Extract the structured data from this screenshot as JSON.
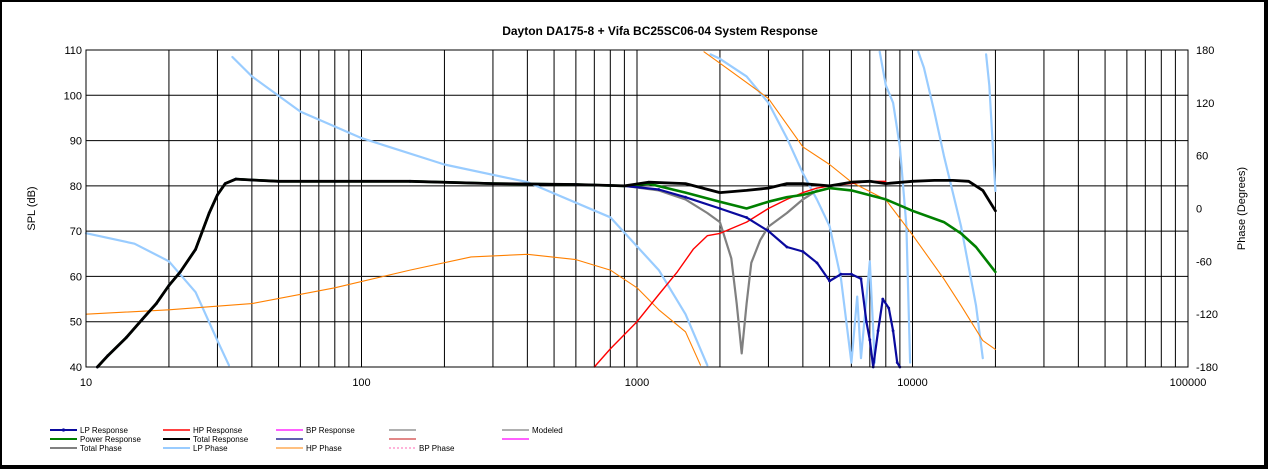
{
  "chart_data": {
    "type": "line",
    "title": "Dayton DA175-8  + Vifa BC25SC06-04      System Response",
    "xscale": "log",
    "xlim": [
      10,
      100000
    ],
    "ylim": [
      40,
      110
    ],
    "y2lim": [
      -180,
      180
    ],
    "ylabel": "SPL (dB)",
    "y2label": "Phase (Degrees)",
    "grid": true,
    "legend_position": "bottom",
    "x_ticks": [
      "10",
      "100",
      "1000",
      "10000",
      "100000"
    ],
    "y_ticks": [
      "40",
      "50",
      "60",
      "70",
      "80",
      "90",
      "100",
      "110"
    ],
    "y2_ticks": [
      "-180",
      "-120",
      "-60",
      "0",
      "60",
      "120",
      "180"
    ],
    "series": [
      {
        "name": "LP Response",
        "color": "#0a0a9e",
        "width": 2.2,
        "axis": "left",
        "marker": true,
        "points": [
          [
            11,
            40
          ],
          [
            12,
            42.5
          ],
          [
            14,
            46.5
          ],
          [
            16,
            50.5
          ],
          [
            18,
            54
          ],
          [
            20,
            58
          ],
          [
            22,
            61
          ],
          [
            25,
            66
          ],
          [
            28,
            74
          ],
          [
            30,
            78
          ],
          [
            32,
            80.5
          ],
          [
            35,
            81.5
          ],
          [
            40,
            81.3
          ],
          [
            50,
            81
          ],
          [
            80,
            81
          ],
          [
            150,
            81
          ],
          [
            300,
            80.5
          ],
          [
            600,
            80.3
          ],
          [
            900,
            80
          ],
          [
            1200,
            79.2
          ],
          [
            1500,
            77.5
          ],
          [
            2000,
            75
          ],
          [
            2500,
            73
          ],
          [
            3000,
            70
          ],
          [
            3500,
            66.5
          ],
          [
            4000,
            65.5
          ],
          [
            4500,
            63
          ],
          [
            5000,
            59
          ],
          [
            5500,
            60.5
          ],
          [
            6000,
            60.5
          ],
          [
            6500,
            59.5
          ],
          [
            6800,
            50
          ],
          [
            7000,
            46
          ],
          [
            7200,
            40
          ],
          [
            7500,
            48
          ],
          [
            7800,
            55
          ],
          [
            8200,
            53
          ],
          [
            8500,
            48
          ],
          [
            8800,
            41
          ],
          [
            9000,
            40
          ]
        ]
      },
      {
        "name": "HP Response",
        "color": "#ff0000",
        "width": 1.4,
        "axis": "left",
        "points": [
          [
            700,
            40
          ],
          [
            800,
            44
          ],
          [
            1000,
            50
          ],
          [
            1200,
            56
          ],
          [
            1400,
            61
          ],
          [
            1600,
            66
          ],
          [
            1800,
            69
          ],
          [
            2000,
            69.5
          ],
          [
            2500,
            72
          ],
          [
            3000,
            75
          ],
          [
            3500,
            77
          ],
          [
            4000,
            78.5
          ],
          [
            4500,
            79.5
          ],
          [
            5000,
            80
          ],
          [
            6000,
            80.5
          ],
          [
            7000,
            81
          ],
          [
            8000,
            81
          ]
        ]
      },
      {
        "name": "BP Response",
        "color": "#ff00ff",
        "width": 1.2,
        "axis": "left",
        "points": []
      },
      {
        "name": "",
        "color": "#808080",
        "width": 1.2,
        "axis": "left",
        "points": []
      },
      {
        "name": "Modeled",
        "color": "#808080",
        "width": 1.2,
        "axis": "left",
        "points": []
      },
      {
        "name": "Power Response",
        "color": "#008000",
        "width": 2.6,
        "axis": "left",
        "points": [
          [
            11,
            40
          ],
          [
            12,
            42.5
          ],
          [
            14,
            46.5
          ],
          [
            16,
            50.5
          ],
          [
            18,
            54
          ],
          [
            20,
            58
          ],
          [
            22,
            61
          ],
          [
            25,
            66
          ],
          [
            28,
            74
          ],
          [
            30,
            78
          ],
          [
            32,
            80.5
          ],
          [
            35,
            81.5
          ],
          [
            40,
            81.3
          ],
          [
            50,
            81
          ],
          [
            80,
            81
          ],
          [
            150,
            81
          ],
          [
            300,
            80.5
          ],
          [
            600,
            80.3
          ],
          [
            900,
            80
          ],
          [
            1100,
            80.5
          ],
          [
            1500,
            78.5
          ],
          [
            2000,
            76.5
          ],
          [
            2500,
            75
          ],
          [
            3000,
            76.5
          ],
          [
            3500,
            77.5
          ],
          [
            4000,
            78
          ],
          [
            5000,
            79.5
          ],
          [
            6000,
            79
          ],
          [
            8000,
            77
          ],
          [
            10000,
            74.5
          ],
          [
            13000,
            72
          ],
          [
            15000,
            69.5
          ],
          [
            17000,
            66.5
          ],
          [
            20000,
            61
          ]
        ]
      },
      {
        "name": "Total Response",
        "color": "#000000",
        "width": 2.8,
        "axis": "left",
        "points": [
          [
            11,
            40
          ],
          [
            12,
            42.5
          ],
          [
            14,
            46.5
          ],
          [
            16,
            50.5
          ],
          [
            18,
            54
          ],
          [
            20,
            58
          ],
          [
            22,
            61
          ],
          [
            25,
            66
          ],
          [
            28,
            74
          ],
          [
            30,
            78
          ],
          [
            32,
            80.5
          ],
          [
            35,
            81.5
          ],
          [
            40,
            81.3
          ],
          [
            50,
            81
          ],
          [
            80,
            81
          ],
          [
            150,
            81
          ],
          [
            300,
            80.5
          ],
          [
            600,
            80.3
          ],
          [
            900,
            80
          ],
          [
            1100,
            80.8
          ],
          [
            1500,
            80.5
          ],
          [
            2000,
            78.5
          ],
          [
            2500,
            79
          ],
          [
            3000,
            79.5
          ],
          [
            3500,
            80.5
          ],
          [
            4000,
            80.5
          ],
          [
            5000,
            80
          ],
          [
            6000,
            80.8
          ],
          [
            7000,
            81
          ],
          [
            8000,
            80.5
          ],
          [
            10000,
            81
          ],
          [
            12000,
            81.2
          ],
          [
            14000,
            81.2
          ],
          [
            16000,
            81
          ],
          [
            18000,
            79
          ],
          [
            20000,
            74.5
          ]
        ]
      },
      {
        "name": "",
        "color": "#000080",
        "width": 1.2,
        "axis": "left",
        "points": []
      },
      {
        "name": "",
        "color": "#d04040",
        "width": 1.2,
        "axis": "left",
        "points": []
      },
      {
        "name": "",
        "color": "#ff00ff",
        "width": 1.2,
        "axis": "left",
        "points": []
      },
      {
        "name": "Total Phase",
        "color": "#808080",
        "width": 2.2,
        "axis": "left",
        "points": [
          [
            900,
            80
          ],
          [
            1200,
            79
          ],
          [
            1500,
            77
          ],
          [
            1800,
            74
          ],
          [
            2000,
            72
          ],
          [
            2200,
            64
          ],
          [
            2300,
            54
          ],
          [
            2400,
            43
          ],
          [
            2500,
            54
          ],
          [
            2600,
            63
          ],
          [
            2800,
            68
          ],
          [
            3000,
            71
          ],
          [
            3500,
            74
          ],
          [
            4000,
            77
          ],
          [
            4500,
            79
          ]
        ]
      },
      {
        "name": "LP Phase",
        "color": "#99ccff",
        "width": 2.2,
        "axis": "right",
        "points": [
          [
            10,
            -28
          ],
          [
            15,
            -40
          ],
          [
            20,
            -60
          ],
          [
            25,
            -95
          ],
          [
            30,
            -150
          ],
          [
            33,
            -178
          ],
          [
            null,
            null
          ],
          [
            34,
            172
          ],
          [
            40,
            150
          ],
          [
            60,
            110
          ],
          [
            100,
            80
          ],
          [
            200,
            50
          ],
          [
            400,
            30
          ],
          [
            800,
            -10
          ],
          [
            1200,
            -70
          ],
          [
            1500,
            -120
          ],
          [
            1800,
            -178
          ],
          [
            null,
            null
          ],
          [
            1850,
            175
          ],
          [
            2000,
            170
          ],
          [
            2500,
            150
          ],
          [
            3000,
            120
          ],
          [
            3500,
            80
          ],
          [
            4000,
            40
          ],
          [
            4500,
            10
          ],
          [
            5000,
            -20
          ],
          [
            5500,
            -80
          ],
          [
            6000,
            -175
          ],
          [
            6300,
            -100
          ],
          [
            6500,
            -170
          ],
          [
            7000,
            -60
          ],
          [
            7300,
            -175
          ],
          [
            null,
            null
          ],
          [
            7600,
            178
          ],
          [
            8000,
            140
          ],
          [
            8500,
            120
          ],
          [
            9000,
            70
          ],
          [
            9500,
            -20
          ],
          [
            9800,
            -175
          ],
          [
            null,
            null
          ],
          [
            10500,
            178
          ],
          [
            11000,
            160
          ],
          [
            12000,
            110
          ],
          [
            13000,
            60
          ],
          [
            15000,
            -20
          ],
          [
            17000,
            -110
          ],
          [
            18000,
            -170
          ],
          [
            null,
            null
          ],
          [
            18500,
            175
          ],
          [
            19000,
            140
          ],
          [
            20000,
            20
          ]
        ]
      },
      {
        "name": "HP Phase",
        "color": "#ff8000",
        "width": 1.1,
        "axis": "right",
        "points": [
          [
            10,
            -120
          ],
          [
            20,
            -115
          ],
          [
            40,
            -108
          ],
          [
            80,
            -90
          ],
          [
            150,
            -70
          ],
          [
            250,
            -55
          ],
          [
            400,
            -52
          ],
          [
            600,
            -58
          ],
          [
            800,
            -70
          ],
          [
            1000,
            -90
          ],
          [
            1200,
            -115
          ],
          [
            1500,
            -140
          ],
          [
            1700,
            -178
          ],
          [
            null,
            null
          ],
          [
            1750,
            178
          ],
          [
            2000,
            165
          ],
          [
            3000,
            125
          ],
          [
            4000,
            70
          ],
          [
            5000,
            50
          ],
          [
            6000,
            30
          ],
          [
            8000,
            10
          ],
          [
            10000,
            -30
          ],
          [
            13000,
            -80
          ],
          [
            15000,
            -110
          ],
          [
            18000,
            -150
          ],
          [
            20000,
            -160
          ]
        ]
      },
      {
        "name": "BP Phase",
        "color": "#ff69b4",
        "width": 1,
        "axis": "right",
        "dashed": true,
        "points": []
      }
    ]
  }
}
